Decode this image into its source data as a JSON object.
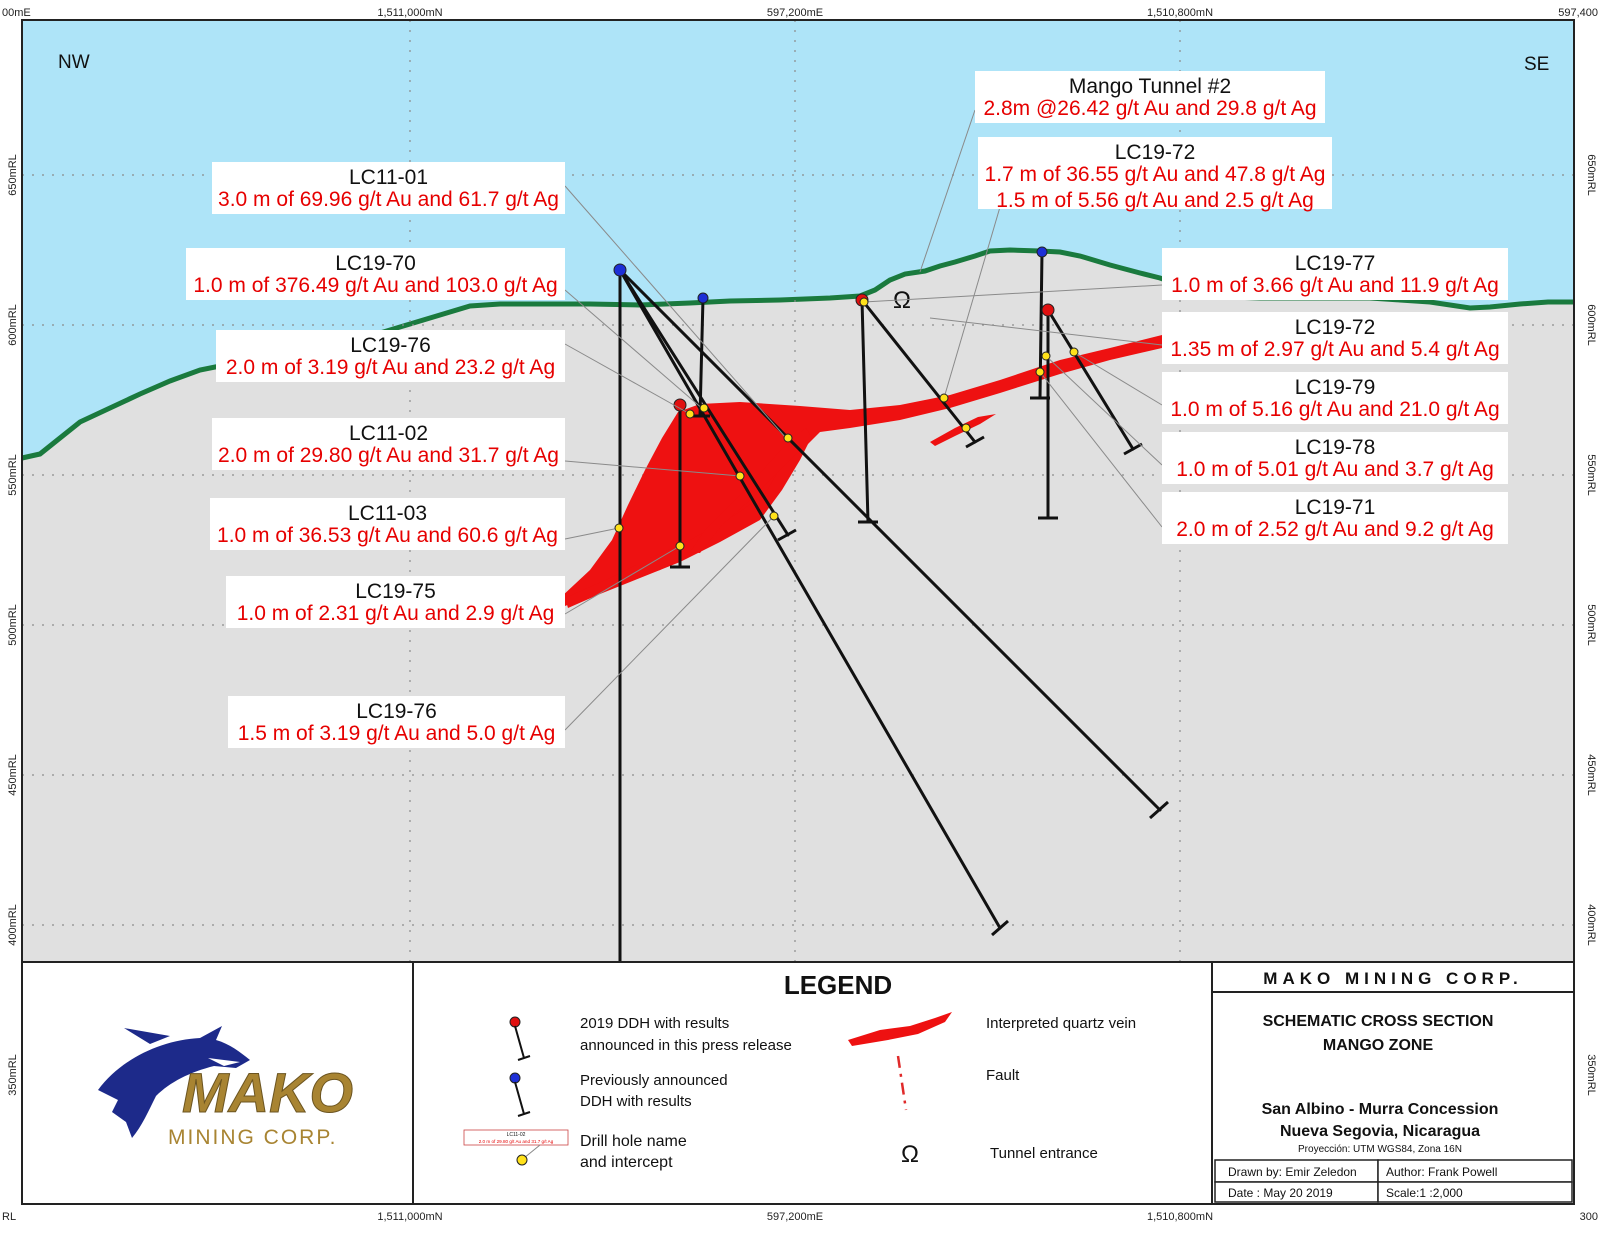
{
  "diagram": {
    "orientation": {
      "left": "NW",
      "right": "SE"
    },
    "top_coords": [
      "00mE",
      "1,511,000mN",
      "597,200mE",
      "1,510,800mN",
      "597,400"
    ],
    "bottom_coords": [
      "RL",
      "1,511,000mN",
      "597,200mE",
      "1,510,800mN",
      "300"
    ],
    "elevation_labels_left": [
      "650mRL",
      "600mRL",
      "550mRL",
      "500mRL",
      "450mRL",
      "400mRL",
      "350mRL"
    ],
    "elevation_labels_right": [
      "650mRL",
      "600mRL",
      "550mRL",
      "500mRL",
      "450mRL",
      "400mRL",
      "350mRL"
    ],
    "colors": {
      "sky": "#aee4f8",
      "ground": "#e0e0e0",
      "topography": "#1a7a3e",
      "vein": "#ee1111",
      "drillhole": "#111111",
      "text_red": "#e60000"
    }
  },
  "annotations": [
    {
      "id": "lc11-01",
      "title": "LC11-01",
      "lines": [
        "3.0 m of 69.96 g/t Au and 61.7 g/t Ag"
      ]
    },
    {
      "id": "lc19-70",
      "title": "LC19-70",
      "lines": [
        "1.0 m of 376.49 g/t Au and 103.0 g/t Ag"
      ]
    },
    {
      "id": "lc19-76a",
      "title": "LC19-76",
      "lines": [
        "2.0 m of 3.19 g/t Au and 23.2 g/t Ag"
      ]
    },
    {
      "id": "lc11-02",
      "title": "LC11-02",
      "lines": [
        "2.0 m of 29.80 g/t Au and 31.7 g/t Ag"
      ]
    },
    {
      "id": "lc11-03",
      "title": "LC11-03",
      "lines": [
        "1.0 m of 36.53 g/t Au and 60.6 g/t Ag"
      ]
    },
    {
      "id": "lc19-75",
      "title": "LC19-75",
      "lines": [
        "1.0 m of 2.31 g/t Au and 2.9 g/t Ag"
      ]
    },
    {
      "id": "lc19-76b",
      "title": "LC19-76",
      "lines": [
        "1.5 m of 3.19 g/t Au and 5.0 g/t Ag"
      ]
    },
    {
      "id": "mango-tunnel-2",
      "title": "Mango Tunnel #2",
      "lines": [
        "2.8m @26.42 g/t Au and 29.8 g/t Ag"
      ]
    },
    {
      "id": "lc19-72a",
      "title": "LC19-72",
      "lines": [
        "1.7 m of 36.55 g/t Au and 47.8 g/t Ag",
        "1.5 m of 5.56 g/t Au and 2.5 g/t Ag"
      ]
    },
    {
      "id": "lc19-77",
      "title": "LC19-77",
      "lines": [
        "1.0 m of 3.66 g/t Au and 11.9 g/t Ag"
      ]
    },
    {
      "id": "lc19-72b",
      "title": "LC19-72",
      "lines": [
        "1.35 m of 2.97 g/t Au and 5.4 g/t Ag"
      ]
    },
    {
      "id": "lc19-79",
      "title": "LC19-79",
      "lines": [
        "1.0 m of 5.16 g/t Au and 21.0 g/t Ag"
      ]
    },
    {
      "id": "lc19-78",
      "title": "LC19-78",
      "lines": [
        "1.0 m of 5.01 g/t Au and 3.7 g/t Ag"
      ]
    },
    {
      "id": "lc19-71",
      "title": "LC19-71",
      "lines": [
        "2.0 m of 2.52 g/t Au and 9.2 g/t Ag"
      ]
    }
  ],
  "legend": {
    "title": "LEGEND",
    "items": {
      "ddh_2019": [
        "2019 DDH with results",
        "announced in this press release"
      ],
      "ddh_previous": [
        "Previously announced",
        "DDH with results"
      ],
      "drill_name": [
        "Drill hole name",
        "and intercept"
      ],
      "quartz_vein": "Interpreted quartz vein",
      "fault": "Fault",
      "tunnel": "Tunnel entrance"
    },
    "sample": {
      "title": "LC11-02",
      "line": "2.0 m of 29.80 g/t Au and 31.7 g/t Ag"
    }
  },
  "logo": {
    "word": "MAKO",
    "sub": "MINING CORP."
  },
  "title_block": {
    "company": "MAKO MINING CORP.",
    "heading": [
      "SCHEMATIC CROSS SECTION",
      "MANGO ZONE"
    ],
    "location": [
      "San Albino - Murra Concession",
      "Nueva Segovia, Nicaragua"
    ],
    "projection": "Proyección: UTM WGS84, Zona 16N",
    "drawn_by": "Drawn by: Emir Zeledon",
    "author": "Author: Frank Powell",
    "date": "Date : May 20 2019",
    "scale": "Scale:1 :2,000"
  }
}
